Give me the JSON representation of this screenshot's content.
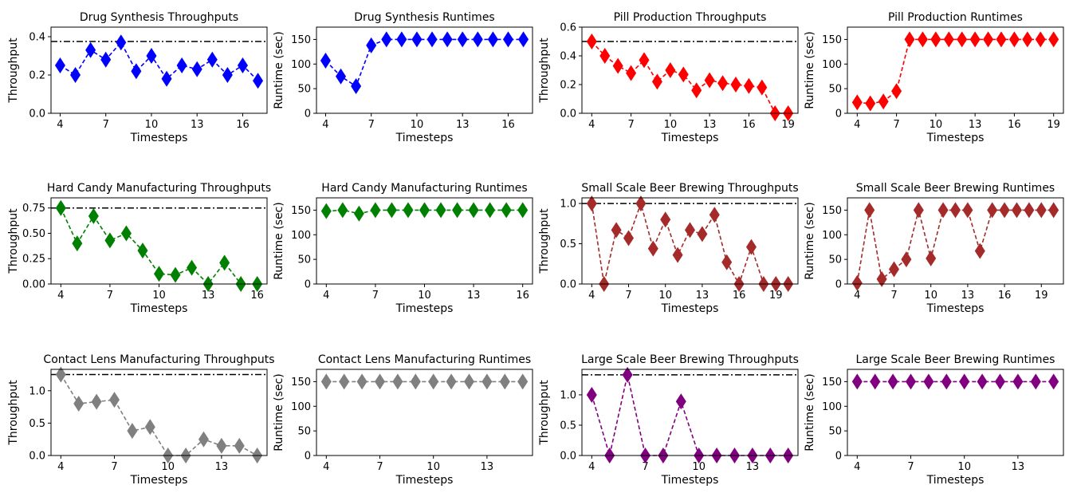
{
  "chart_data": [
    {
      "type": "line",
      "title": "Drug Synthesis Throughputs",
      "xlabel": "Timesteps",
      "ylabel": "Throughput",
      "color": "#0000ff",
      "xlim": [
        3.4,
        17.6
      ],
      "ylim": [
        0,
        0.45
      ],
      "xticks": [
        "4",
        "7",
        "10",
        "13",
        "16"
      ],
      "yticks": [
        "0.0",
        "0.2",
        "0.4"
      ],
      "baseline": 0.375,
      "x": [
        4,
        5,
        6,
        7,
        8,
        9,
        10,
        11,
        12,
        13,
        14,
        15,
        16,
        17
      ],
      "values": [
        0.25,
        0.2,
        0.33,
        0.28,
        0.37,
        0.22,
        0.3,
        0.18,
        0.25,
        0.23,
        0.28,
        0.2,
        0.25,
        0.17
      ]
    },
    {
      "type": "line",
      "title": "Drug Synthesis Runtimes",
      "xlabel": "Timesteps",
      "ylabel": "Runtime (sec)",
      "color": "#0000ff",
      "xlim": [
        3.4,
        17.6
      ],
      "ylim": [
        0,
        175
      ],
      "xticks": [
        "4",
        "7",
        "10",
        "13",
        "16"
      ],
      "yticks": [
        "0",
        "50",
        "100",
        "150"
      ],
      "x": [
        4,
        5,
        6,
        7,
        8,
        9,
        10,
        11,
        12,
        13,
        14,
        15,
        16,
        17
      ],
      "values": [
        107,
        75,
        55,
        138,
        150,
        150,
        150,
        150,
        150,
        150,
        150,
        150,
        150,
        150
      ]
    },
    {
      "type": "line",
      "title": "Pill Production Throughputs",
      "xlabel": "Timesteps",
      "ylabel": "Throughput",
      "color": "#ff0000",
      "xlim": [
        3.25,
        19.75
      ],
      "ylim": [
        0,
        0.6
      ],
      "xticks": [
        "4",
        "7",
        "10",
        "13",
        "16",
        "19"
      ],
      "yticks": [
        "0.0",
        "0.2",
        "0.4",
        "0.6"
      ],
      "baseline": 0.5,
      "x": [
        4,
        5,
        6,
        7,
        8,
        9,
        10,
        11,
        12,
        13,
        14,
        15,
        16,
        17,
        18,
        19
      ],
      "values": [
        0.5,
        0.4,
        0.33,
        0.28,
        0.37,
        0.22,
        0.3,
        0.27,
        0.16,
        0.23,
        0.21,
        0.2,
        0.19,
        0.18,
        0.0,
        0.0
      ]
    },
    {
      "type": "line",
      "title": "Pill Production Runtimes",
      "xlabel": "Timesteps",
      "ylabel": "Runtime (sec)",
      "color": "#ff0000",
      "xlim": [
        3.25,
        19.75
      ],
      "ylim": [
        0,
        175
      ],
      "xticks": [
        "4",
        "7",
        "10",
        "13",
        "16",
        "19"
      ],
      "yticks": [
        "0",
        "50",
        "100",
        "150"
      ],
      "x": [
        4,
        5,
        6,
        7,
        8,
        9,
        10,
        11,
        12,
        13,
        14,
        15,
        16,
        17,
        18,
        19
      ],
      "values": [
        22,
        20,
        24,
        45,
        150,
        150,
        150,
        150,
        150,
        150,
        150,
        150,
        150,
        150,
        150,
        150
      ]
    },
    {
      "type": "line",
      "title": "Hard Candy Manufacturing Throughputs",
      "xlabel": "Timesteps",
      "ylabel": "Throughput",
      "color": "#008000",
      "xlim": [
        3.4,
        16.6
      ],
      "ylim": [
        0,
        0.85
      ],
      "xticks": [
        "4",
        "7",
        "10",
        "13",
        "16"
      ],
      "yticks": [
        "0.00",
        "0.25",
        "0.50",
        "0.75"
      ],
      "baseline": 0.75,
      "x": [
        4,
        5,
        6,
        7,
        8,
        9,
        10,
        11,
        12,
        13,
        14,
        15,
        16
      ],
      "values": [
        0.75,
        0.4,
        0.67,
        0.43,
        0.5,
        0.33,
        0.1,
        0.09,
        0.16,
        0.0,
        0.21,
        0.0,
        0.0
      ]
    },
    {
      "type": "line",
      "title": "Hard Candy Manufacturing Runtimes",
      "xlabel": "Timesteps",
      "ylabel": "Runtime (sec)",
      "color": "#008000",
      "xlim": [
        3.4,
        16.6
      ],
      "ylim": [
        0,
        175
      ],
      "xticks": [
        "4",
        "7",
        "10",
        "13",
        "16"
      ],
      "yticks": [
        "0",
        "50",
        "100",
        "150"
      ],
      "x": [
        4,
        5,
        6,
        7,
        8,
        9,
        10,
        11,
        12,
        13,
        14,
        15,
        16
      ],
      "values": [
        148,
        150,
        143,
        150,
        150,
        150,
        150,
        150,
        150,
        150,
        150,
        150,
        150
      ]
    },
    {
      "type": "line",
      "title": "Small Scale Beer Brewing Throughputs",
      "xlabel": "Timesteps",
      "ylabel": "Throughput",
      "color": "#a52a2a",
      "xlim": [
        3.2,
        20.8
      ],
      "ylim": [
        0,
        1.07
      ],
      "xticks": [
        "4",
        "7",
        "10",
        "13",
        "16",
        "19"
      ],
      "yticks": [
        "0.0",
        "0.5",
        "1.0"
      ],
      "baseline": 1.0,
      "x": [
        4,
        5,
        6,
        7,
        8,
        9,
        10,
        11,
        12,
        13,
        14,
        15,
        16,
        17,
        18,
        19,
        20
      ],
      "values": [
        1.0,
        0.0,
        0.67,
        0.57,
        1.0,
        0.44,
        0.8,
        0.36,
        0.67,
        0.62,
        0.86,
        0.27,
        0.0,
        0.46,
        0.0,
        0.0,
        0.0
      ]
    },
    {
      "type": "line",
      "title": "Small Scale Beer Brewing Runtimes",
      "xlabel": "Timesteps",
      "ylabel": "Runtime (sec)",
      "color": "#a52a2a",
      "xlim": [
        3.2,
        20.8
      ],
      "ylim": [
        0,
        175
      ],
      "xticks": [
        "4",
        "7",
        "10",
        "13",
        "16",
        "19"
      ],
      "yticks": [
        "0",
        "50",
        "100",
        "150"
      ],
      "x": [
        4,
        5,
        6,
        7,
        8,
        9,
        10,
        11,
        12,
        13,
        14,
        15,
        16,
        17,
        18,
        19,
        20
      ],
      "values": [
        2,
        150,
        10,
        30,
        50,
        150,
        52,
        150,
        150,
        150,
        67,
        150,
        150,
        150,
        150,
        150,
        150
      ]
    },
    {
      "type": "line",
      "title": "Contact Lens Manufacturing Throughputs",
      "xlabel": "Timesteps",
      "ylabel": "Throughput",
      "color": "#808080",
      "xlim": [
        3.45,
        15.55
      ],
      "ylim": [
        0,
        1.33
      ],
      "xticks": [
        "4",
        "7",
        "10",
        "13"
      ],
      "yticks": [
        "0.0",
        "0.5",
        "1.0"
      ],
      "baseline": 1.25,
      "x": [
        4,
        5,
        6,
        7,
        8,
        9,
        10,
        11,
        12,
        13,
        14,
        15
      ],
      "values": [
        1.25,
        0.8,
        0.83,
        0.86,
        0.38,
        0.44,
        0.0,
        0.0,
        0.25,
        0.15,
        0.15,
        0.0
      ]
    },
    {
      "type": "line",
      "title": "Contact Lens Manufacturing Runtimes",
      "xlabel": "Timesteps",
      "ylabel": "Runtime (sec)",
      "color": "#808080",
      "xlim": [
        3.45,
        15.55
      ],
      "ylim": [
        0,
        175
      ],
      "xticks": [
        "4",
        "7",
        "10",
        "13"
      ],
      "yticks": [
        "0",
        "50",
        "100",
        "150"
      ],
      "x": [
        4,
        5,
        6,
        7,
        8,
        9,
        10,
        11,
        12,
        13,
        14,
        15
      ],
      "values": [
        150,
        150,
        150,
        150,
        150,
        150,
        150,
        150,
        150,
        150,
        150,
        150
      ]
    },
    {
      "type": "line",
      "title": "Large Scale Beer Brewing Throughputs",
      "xlabel": "Timesteps",
      "ylabel": "Throughput",
      "color": "#800080",
      "xlim": [
        3.45,
        15.55
      ],
      "ylim": [
        0,
        1.42
      ],
      "xticks": [
        "4",
        "7",
        "10",
        "13"
      ],
      "yticks": [
        "0.0",
        "0.5",
        "1.0"
      ],
      "baseline": 1.33,
      "x": [
        4,
        5,
        6,
        7,
        8,
        9,
        10,
        11,
        12,
        13,
        14,
        15
      ],
      "values": [
        1.0,
        0.0,
        1.33,
        0.0,
        0.0,
        0.89,
        0.0,
        0.0,
        0.0,
        0.0,
        0.0,
        0.0
      ]
    },
    {
      "type": "line",
      "title": "Large Scale Beer Brewing Runtimes",
      "xlabel": "Timesteps",
      "ylabel": "Runtime (sec)",
      "color": "#800080",
      "xlim": [
        3.45,
        15.55
      ],
      "ylim": [
        0,
        175
      ],
      "xticks": [
        "4",
        "7",
        "10",
        "13"
      ],
      "yticks": [
        "0",
        "50",
        "100",
        "150"
      ],
      "x": [
        4,
        5,
        6,
        7,
        8,
        9,
        10,
        11,
        12,
        13,
        14,
        15
      ],
      "values": [
        150,
        150,
        150,
        150,
        150,
        150,
        150,
        150,
        150,
        150,
        150,
        150
      ]
    }
  ]
}
